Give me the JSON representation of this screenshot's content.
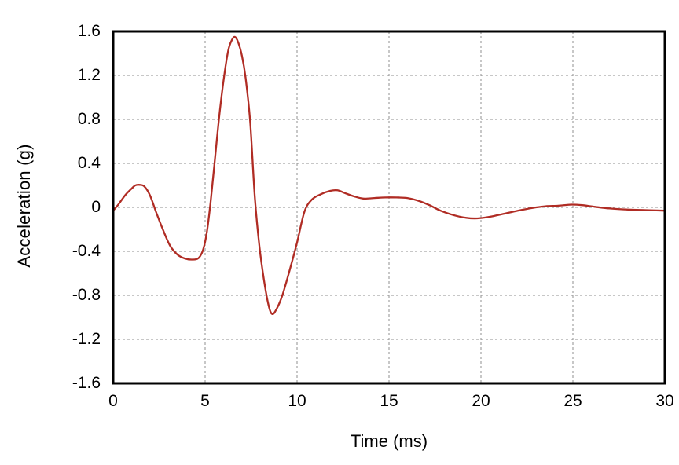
{
  "chart_data": {
    "type": "line",
    "title": "",
    "xlabel": "Time (ms)",
    "ylabel": "Acceleration (g)",
    "xlim": [
      0,
      30
    ],
    "ylim": [
      -1.6,
      1.6
    ],
    "x_ticks": [
      0,
      5,
      10,
      15,
      20,
      25,
      30
    ],
    "y_ticks": [
      -1.6,
      -1.2,
      -0.8,
      -0.4,
      0,
      0.4,
      0.8,
      1.2,
      1.6
    ],
    "x_tick_labels": [
      "0",
      "5",
      "10",
      "15",
      "20",
      "25",
      "30"
    ],
    "y_tick_labels": [
      "-1.6",
      "-1.2",
      "-0.8",
      "-0.4",
      "0",
      "0.4",
      "0.8",
      "1.2",
      "1.6"
    ],
    "grid": true,
    "grid_style": "dashed",
    "legend": "none",
    "colors": {
      "line": "#b02c24",
      "grid": "#8f8f8f",
      "frame": "#000000",
      "background": "#ffffff",
      "text": "#000000"
    },
    "series": [
      {
        "name": "acceleration",
        "x": [
          0,
          0.3,
          0.65,
          1.0,
          1.2,
          1.45,
          1.7,
          2.0,
          2.35,
          2.7,
          3.1,
          3.5,
          3.9,
          4.3,
          4.65,
          4.9,
          5.1,
          5.3,
          5.5,
          5.75,
          6.0,
          6.25,
          6.45,
          6.62,
          6.8,
          7.0,
          7.2,
          7.45,
          7.7,
          7.95,
          8.2,
          8.45,
          8.65,
          8.9,
          9.2,
          9.6,
          10.0,
          10.4,
          10.8,
          11.3,
          11.8,
          12.2,
          12.6,
          13.1,
          13.6,
          14.2,
          14.8,
          15.4,
          16.0,
          16.6,
          17.2,
          17.8,
          18.5,
          19.2,
          19.8,
          20.5,
          21.2,
          22.0,
          22.8,
          23.5,
          24.2,
          24.9,
          25.5,
          26.2,
          27.0,
          28.0,
          29.0,
          30.0
        ],
        "y": [
          -0.03,
          0.03,
          0.11,
          0.17,
          0.2,
          0.205,
          0.19,
          0.11,
          -0.05,
          -0.2,
          -0.35,
          -0.43,
          -0.465,
          -0.475,
          -0.46,
          -0.38,
          -0.22,
          0.05,
          0.38,
          0.8,
          1.15,
          1.42,
          1.52,
          1.55,
          1.5,
          1.38,
          1.18,
          0.78,
          0.1,
          -0.35,
          -0.66,
          -0.89,
          -0.97,
          -0.92,
          -0.8,
          -0.57,
          -0.32,
          -0.04,
          0.07,
          0.12,
          0.15,
          0.155,
          0.13,
          0.1,
          0.08,
          0.085,
          0.09,
          0.09,
          0.085,
          0.06,
          0.02,
          -0.03,
          -0.07,
          -0.095,
          -0.1,
          -0.085,
          -0.06,
          -0.03,
          -0.005,
          0.01,
          0.015,
          0.025,
          0.02,
          0.005,
          -0.01,
          -0.02,
          -0.025,
          -0.03
        ]
      }
    ]
  }
}
